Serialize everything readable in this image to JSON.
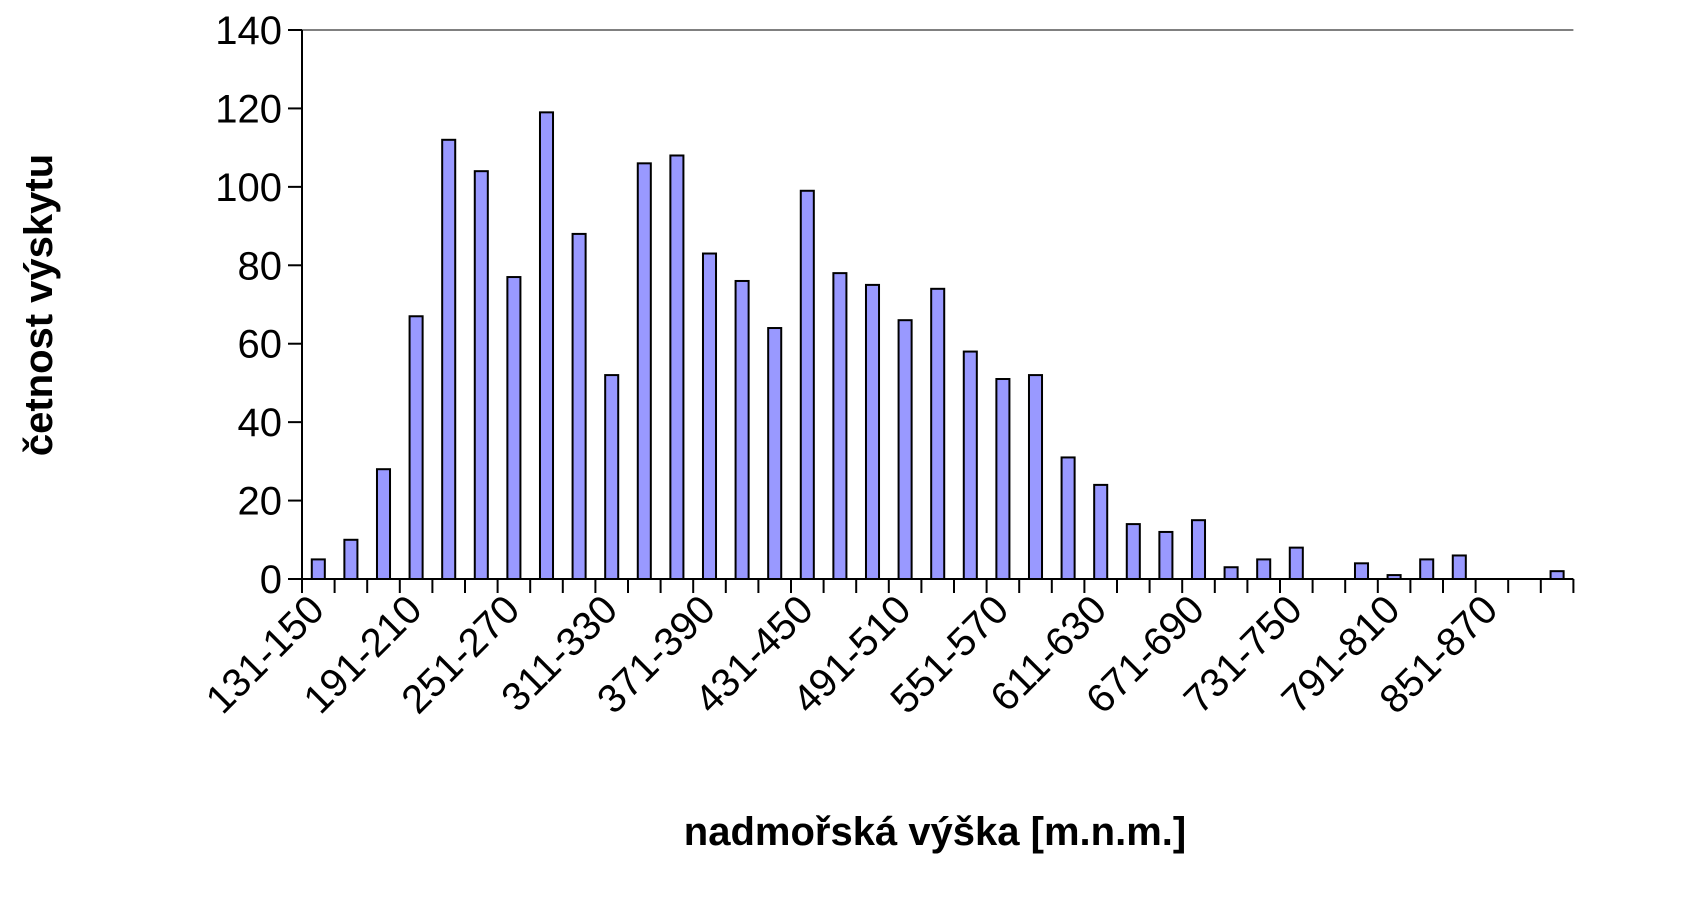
{
  "chart_data": {
    "type": "bar",
    "x_label": "nadmořská výška [m.n.m.]",
    "y_label": "četnost výskytu",
    "categories": [
      "131-150",
      null,
      null,
      "191-210",
      null,
      null,
      "251-270",
      null,
      null,
      "311-330",
      null,
      null,
      "371-390",
      null,
      null,
      "431-450",
      null,
      null,
      "491-510",
      null,
      null,
      "551-570",
      null,
      null,
      "611-630",
      null,
      null,
      "671-690",
      null,
      null,
      "731-750",
      null,
      null,
      "791-810",
      null,
      null,
      "851-870",
      null,
      null
    ],
    "values": [
      5,
      10,
      28,
      67,
      112,
      104,
      77,
      119,
      88,
      52,
      106,
      108,
      83,
      76,
      64,
      99,
      78,
      75,
      66,
      74,
      58,
      51,
      52,
      31,
      24,
      14,
      12,
      15,
      3,
      5,
      8,
      0,
      4,
      1,
      5,
      6,
      0,
      0,
      2
    ],
    "color": "#9999ff",
    "ylim": [
      0,
      140
    ],
    "yticks": [
      0,
      20,
      40,
      60,
      80,
      100,
      120,
      140
    ]
  }
}
